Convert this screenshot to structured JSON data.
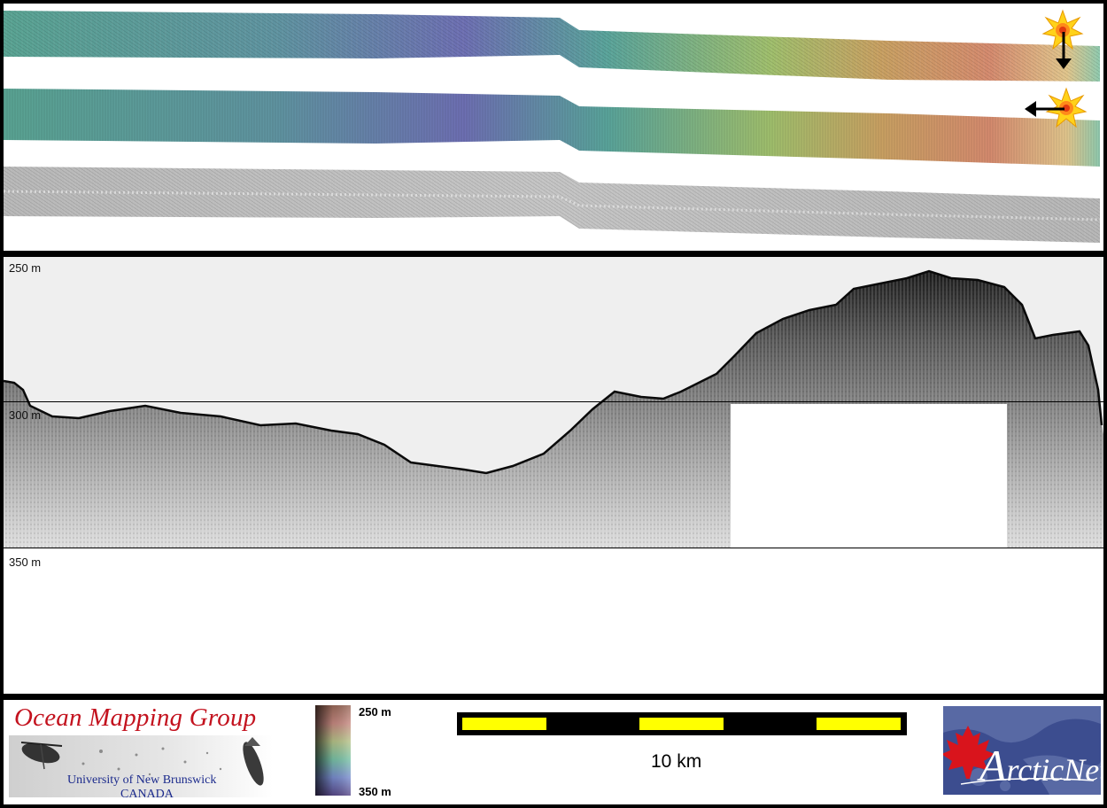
{
  "profile": {
    "depth_labels": [
      "250 m",
      "300 m",
      "350 m"
    ]
  },
  "footer": {
    "group_logo": {
      "title": "Ocean Mapping Group",
      "subtitle_1": "University of New Brunswick",
      "subtitle_2": "CANADA"
    },
    "colorbar": {
      "top_label": "250 m",
      "bottom_label": "350 m"
    },
    "scale_bar": {
      "label": "10 km"
    },
    "partner_logo": {
      "text_initial": "A",
      "text_rest": "rcticNet"
    }
  },
  "colors": {
    "frame": "#000000",
    "omg_red": "#c3121e",
    "unb_blue": "#1b2a8c",
    "scale_yellow": "#ffff00",
    "arcticnet_bg": "#3c4d8f",
    "maple_red": "#d9141c"
  },
  "icons": {
    "sun_markers": [
      "sun-burst-icon",
      "sun-burst-icon"
    ],
    "arrows": [
      "arrow-down-icon",
      "arrow-left-icon"
    ],
    "maple_leaf": "maple-leaf-icon"
  }
}
